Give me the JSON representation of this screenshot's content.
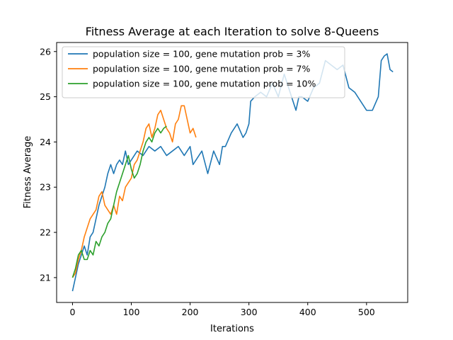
{
  "chart_data": {
    "type": "line",
    "title": "Fitness Average at each Iteration to solve 8-Queens",
    "xlabel": "Iterations",
    "ylabel": "Fitness Average",
    "xlim": [
      -27,
      570
    ],
    "ylim": [
      20.45,
      26.2
    ],
    "xticks": [
      0,
      100,
      200,
      300,
      400,
      500
    ],
    "yticks": [
      21,
      22,
      23,
      24,
      25,
      26
    ],
    "grid": false,
    "legend_position": "upper-left",
    "series": [
      {
        "name": "population size = 100, gene mutation prob = 3%",
        "color": "#1f77b4",
        "points": [
          [
            0,
            20.7
          ],
          [
            5,
            21.0
          ],
          [
            10,
            21.3
          ],
          [
            15,
            21.5
          ],
          [
            20,
            21.7
          ],
          [
            25,
            21.5
          ],
          [
            30,
            21.9
          ],
          [
            35,
            22.0
          ],
          [
            40,
            22.3
          ],
          [
            45,
            22.6
          ],
          [
            50,
            22.8
          ],
          [
            55,
            23.0
          ],
          [
            60,
            23.3
          ],
          [
            65,
            23.5
          ],
          [
            70,
            23.3
          ],
          [
            75,
            23.5
          ],
          [
            80,
            23.6
          ],
          [
            85,
            23.5
          ],
          [
            90,
            23.8
          ],
          [
            95,
            23.5
          ],
          [
            100,
            23.6
          ],
          [
            110,
            23.8
          ],
          [
            120,
            23.7
          ],
          [
            130,
            23.9
          ],
          [
            140,
            23.8
          ],
          [
            150,
            23.9
          ],
          [
            160,
            23.7
          ],
          [
            170,
            23.8
          ],
          [
            180,
            23.9
          ],
          [
            190,
            23.7
          ],
          [
            200,
            23.9
          ],
          [
            205,
            23.5
          ],
          [
            210,
            23.6
          ],
          [
            220,
            23.8
          ],
          [
            230,
            23.3
          ],
          [
            240,
            23.8
          ],
          [
            250,
            23.5
          ],
          [
            255,
            23.9
          ],
          [
            260,
            23.9
          ],
          [
            270,
            24.2
          ],
          [
            280,
            24.4
          ],
          [
            290,
            24.1
          ],
          [
            295,
            24.2
          ],
          [
            300,
            24.4
          ],
          [
            303,
            24.9
          ],
          [
            310,
            25.0
          ],
          [
            320,
            25.1
          ],
          [
            330,
            25.0
          ],
          [
            340,
            25.3
          ],
          [
            350,
            25.0
          ],
          [
            360,
            25.5
          ],
          [
            370,
            25.1
          ],
          [
            380,
            24.7
          ],
          [
            385,
            25.0
          ],
          [
            390,
            25.0
          ],
          [
            400,
            24.9
          ],
          [
            410,
            25.2
          ],
          [
            420,
            25.3
          ],
          [
            430,
            25.8
          ],
          [
            440,
            25.7
          ],
          [
            450,
            25.6
          ],
          [
            460,
            25.7
          ],
          [
            470,
            25.2
          ],
          [
            480,
            25.1
          ],
          [
            490,
            24.9
          ],
          [
            500,
            24.7
          ],
          [
            510,
            24.7
          ],
          [
            520,
            25.0
          ],
          [
            525,
            25.8
          ],
          [
            530,
            25.9
          ],
          [
            535,
            25.95
          ],
          [
            540,
            25.6
          ],
          [
            545,
            25.55
          ]
        ]
      },
      {
        "name": "population size = 100, gene mutation prob = 7%",
        "color": "#ff7f0e",
        "points": [
          [
            0,
            21.0
          ],
          [
            5,
            21.1
          ],
          [
            10,
            21.4
          ],
          [
            15,
            21.6
          ],
          [
            20,
            21.9
          ],
          [
            25,
            22.1
          ],
          [
            30,
            22.3
          ],
          [
            35,
            22.4
          ],
          [
            40,
            22.5
          ],
          [
            45,
            22.8
          ],
          [
            50,
            22.9
          ],
          [
            55,
            22.6
          ],
          [
            60,
            22.5
          ],
          [
            65,
            22.4
          ],
          [
            70,
            22.6
          ],
          [
            75,
            22.4
          ],
          [
            80,
            22.8
          ],
          [
            85,
            22.7
          ],
          [
            90,
            23.0
          ],
          [
            95,
            23.1
          ],
          [
            100,
            23.2
          ],
          [
            105,
            23.5
          ],
          [
            110,
            23.6
          ],
          [
            115,
            23.8
          ],
          [
            120,
            24.0
          ],
          [
            125,
            24.3
          ],
          [
            130,
            24.4
          ],
          [
            135,
            24.1
          ],
          [
            140,
            24.3
          ],
          [
            145,
            24.6
          ],
          [
            150,
            24.7
          ],
          [
            155,
            24.5
          ],
          [
            160,
            24.3
          ],
          [
            165,
            24.2
          ],
          [
            170,
            24.0
          ],
          [
            175,
            24.4
          ],
          [
            180,
            24.5
          ],
          [
            185,
            24.8
          ],
          [
            190,
            24.8
          ],
          [
            195,
            24.5
          ],
          [
            200,
            24.2
          ],
          [
            205,
            24.3
          ],
          [
            210,
            24.1
          ]
        ]
      },
      {
        "name": "population size = 100, gene mutation prob = 10%",
        "color": "#2ca02c",
        "points": [
          [
            0,
            21.0
          ],
          [
            5,
            21.2
          ],
          [
            10,
            21.5
          ],
          [
            15,
            21.6
          ],
          [
            20,
            21.4
          ],
          [
            25,
            21.4
          ],
          [
            30,
            21.6
          ],
          [
            35,
            21.5
          ],
          [
            40,
            21.8
          ],
          [
            45,
            21.7
          ],
          [
            50,
            21.9
          ],
          [
            55,
            22.0
          ],
          [
            60,
            22.2
          ],
          [
            65,
            22.3
          ],
          [
            70,
            22.6
          ],
          [
            75,
            22.9
          ],
          [
            80,
            23.1
          ],
          [
            85,
            23.3
          ],
          [
            90,
            23.5
          ],
          [
            95,
            23.7
          ],
          [
            100,
            23.4
          ],
          [
            105,
            23.2
          ],
          [
            110,
            23.3
          ],
          [
            115,
            23.5
          ],
          [
            120,
            23.8
          ],
          [
            125,
            24.0
          ],
          [
            130,
            24.1
          ],
          [
            135,
            24.0
          ],
          [
            140,
            24.2
          ],
          [
            145,
            24.3
          ],
          [
            150,
            24.2
          ],
          [
            155,
            24.3
          ],
          [
            160,
            24.35
          ]
        ]
      }
    ]
  }
}
